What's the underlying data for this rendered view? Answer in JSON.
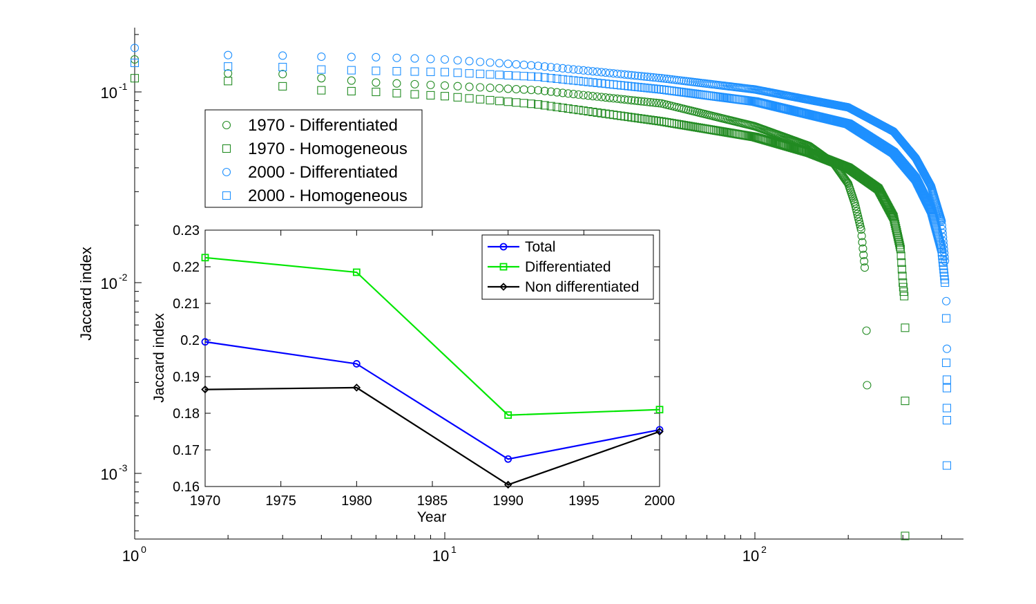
{
  "chart_data": [
    {
      "type": "scatter",
      "xscale": "log",
      "yscale": "log",
      "xlim": [
        1,
        600
      ],
      "ylim": [
        0.0004,
        0.2
      ],
      "ylabel": "Jaccard index",
      "xlabel": "",
      "x_ticks": [
        {
          "base": "10",
          "exp": "0"
        },
        {
          "base": "10",
          "exp": "1"
        },
        {
          "base": "10",
          "exp": "2"
        }
      ],
      "y_ticks": [
        {
          "base": "10",
          "exp": "-1"
        },
        {
          "base": "10",
          "exp": "-2"
        },
        {
          "base": "10",
          "exp": "-3"
        }
      ],
      "legend": {
        "position": "upper-left",
        "entries": [
          {
            "label": "1970 - Differentiated",
            "marker": "circle",
            "color": "#228B22"
          },
          {
            "label": "1970 - Homogeneous",
            "marker": "square",
            "color": "#228B22"
          },
          {
            "label": "2000 - Differentiated",
            "marker": "circle",
            "color": "#1E90FF"
          },
          {
            "label": "2000 - Homogeneous",
            "marker": "square",
            "color": "#1E90FF"
          }
        ]
      },
      "series": [
        {
          "name": "1970 - Differentiated",
          "color": "#228B22",
          "marker": "circle",
          "count": 230,
          "anchors": [
            [
              1,
              0.148
            ],
            [
              2,
              0.125
            ],
            [
              3,
              0.124
            ],
            [
              4,
              0.118
            ],
            [
              6,
              0.112
            ],
            [
              10,
              0.108
            ],
            [
              20,
              0.102
            ],
            [
              50,
              0.087
            ],
            [
              100,
              0.066
            ],
            [
              150,
              0.052
            ],
            [
              180,
              0.042
            ],
            [
              200,
              0.033
            ],
            [
              210,
              0.026
            ],
            [
              220,
              0.019
            ],
            [
              226,
              0.012
            ]
          ],
          "tail": [
            [
              229,
              0.0056
            ],
            [
              230,
              0.0029
            ]
          ]
        },
        {
          "name": "1970 - Homogeneous",
          "color": "#228B22",
          "marker": "square",
          "count": 304,
          "anchors": [
            [
              1,
              0.118
            ],
            [
              2,
              0.114
            ],
            [
              3,
              0.107
            ],
            [
              4,
              0.102
            ],
            [
              6,
              0.1
            ],
            [
              10,
              0.095
            ],
            [
              20,
              0.086
            ],
            [
              50,
              0.07
            ],
            [
              100,
              0.058
            ],
            [
              150,
              0.048
            ],
            [
              200,
              0.04
            ],
            [
              250,
              0.031
            ],
            [
              280,
              0.022
            ],
            [
              295,
              0.015
            ],
            [
              300,
              0.01
            ],
            [
              303,
              0.0085
            ]
          ],
          "tail": [
            [
              305,
              0.0058
            ],
            [
              305,
              0.0024
            ],
            [
              305,
              0.00047
            ]
          ]
        },
        {
          "name": "2000 - Differentiated",
          "color": "#1E90FF",
          "marker": "circle",
          "count": 421,
          "anchors": [
            [
              1,
              0.17
            ],
            [
              2,
              0.156
            ],
            [
              3,
              0.155
            ],
            [
              4,
              0.153
            ],
            [
              6,
              0.152
            ],
            [
              10,
              0.148
            ],
            [
              20,
              0.137
            ],
            [
              50,
              0.118
            ],
            [
              100,
              0.103
            ],
            [
              200,
              0.083
            ],
            [
              280,
              0.062
            ],
            [
              330,
              0.045
            ],
            [
              370,
              0.032
            ],
            [
              400,
              0.021
            ],
            [
              410,
              0.013
            ]
          ],
          "tail": [
            [
              414,
              0.008
            ],
            [
              416,
              0.0045
            ]
          ]
        },
        {
          "name": "2000 - Homogeneous",
          "color": "#1E90FF",
          "marker": "square",
          "count": 421,
          "anchors": [
            [
              1,
              0.142
            ],
            [
              2,
              0.136
            ],
            [
              3,
              0.135
            ],
            [
              4,
              0.131
            ],
            [
              6,
              0.129
            ],
            [
              10,
              0.127
            ],
            [
              20,
              0.12
            ],
            [
              50,
              0.103
            ],
            [
              100,
              0.089
            ],
            [
              200,
              0.068
            ],
            [
              280,
              0.048
            ],
            [
              330,
              0.035
            ],
            [
              370,
              0.024
            ],
            [
              400,
              0.015
            ],
            [
              410,
              0.01
            ]
          ],
          "tail": [
            [
              414,
              0.0065
            ],
            [
              414,
              0.0038
            ],
            [
              416,
              0.0031
            ],
            [
              416,
              0.0028
            ],
            [
              416,
              0.0022
            ],
            [
              416,
              0.0019
            ],
            [
              416,
              0.0011
            ]
          ]
        }
      ]
    },
    {
      "type": "line",
      "title": "",
      "xlabel": "Year",
      "ylabel": "Jaccard index",
      "xlim": [
        1970,
        2000
      ],
      "ylim": [
        0.16,
        0.23
      ],
      "x_ticks": [
        "1970",
        "1975",
        "1980",
        "1985",
        "1990",
        "1995",
        "2000"
      ],
      "y_ticks": [
        "0.16",
        "0.17",
        "0.18",
        "0.19",
        "0.2",
        "0.21",
        "0.22",
        "0.23"
      ],
      "x": [
        1970,
        1980,
        1990,
        2000
      ],
      "legend": {
        "position": "top-right"
      },
      "series": [
        {
          "name": "Total",
          "color": "#0000FF",
          "marker": "circle",
          "values": [
            0.1995,
            0.1935,
            0.1675,
            0.1755
          ]
        },
        {
          "name": "Differentiated",
          "color": "#00E600",
          "marker": "square",
          "values": [
            0.2225,
            0.2185,
            0.1795,
            0.181
          ]
        },
        {
          "name": "Non differentiated",
          "color": "#000000",
          "marker": "diamond",
          "values": [
            0.1865,
            0.187,
            0.1605,
            0.175
          ]
        }
      ]
    }
  ]
}
